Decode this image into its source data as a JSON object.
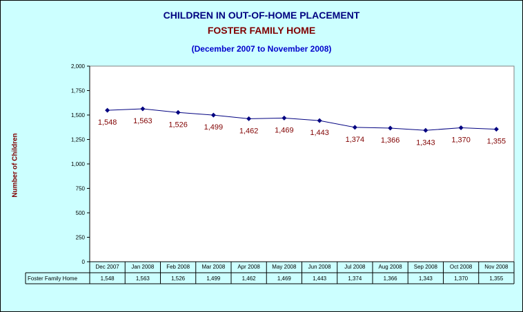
{
  "header": {
    "title": "CHILDREN IN OUT-OF-HOME PLACEMENT",
    "subtitle": "FOSTER FAMILY HOME",
    "period": "(December 2007 to November 2008)"
  },
  "colors": {
    "background": "#ccffff",
    "plot_background": "#ffffff",
    "line": "#000080",
    "data_label": "#800000",
    "title": "#000080",
    "subtitle": "#800000",
    "period": "#0000cc"
  },
  "chart_data": {
    "type": "line",
    "title": "CHILDREN IN OUT-OF-HOME PLACEMENT",
    "subtitle": "FOSTER FAMILY HOME",
    "xlabel": "",
    "ylabel": "Number of Children",
    "categories": [
      "Dec 2007",
      "Jan 2008",
      "Feb 2008",
      "Mar 2008",
      "Apr 2008",
      "May 2008",
      "Jun 2008",
      "Jul 2008",
      "Aug 2008",
      "Sep 2008",
      "Oct 2008",
      "Nov 2008"
    ],
    "series": [
      {
        "name": "Foster Family Home",
        "values": [
          1548,
          1563,
          1526,
          1499,
          1462,
          1469,
          1443,
          1374,
          1366,
          1343,
          1370,
          1355
        ],
        "labels": [
          "1,548",
          "1,563",
          "1,526",
          "1,499",
          "1,462",
          "1,469",
          "1,443",
          "1,374",
          "1,366",
          "1,343",
          "1,370",
          "1,355"
        ]
      }
    ],
    "ylim": [
      0,
      2000
    ],
    "yticks": [
      0,
      250,
      500,
      750,
      1000,
      1250,
      1500,
      1750,
      2000
    ],
    "ytick_labels": [
      "0",
      "250",
      "500",
      "750",
      "1,000",
      "1,250",
      "1,500",
      "1,750",
      "2,000"
    ],
    "grid": false,
    "legend": "data-table"
  }
}
